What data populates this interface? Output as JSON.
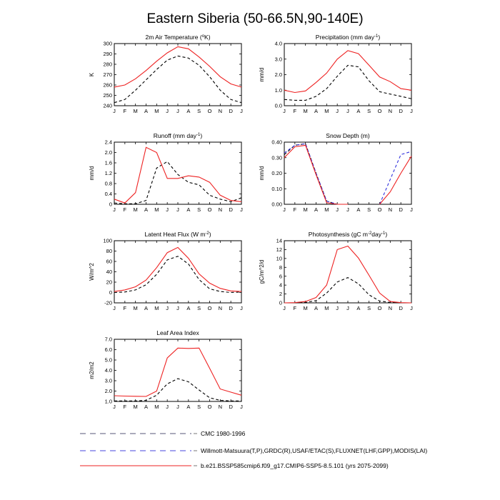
{
  "title": "Eastern Siberia (50-66.5N,90-140E)",
  "months": [
    "J",
    "F",
    "M",
    "A",
    "M",
    "J",
    "J",
    "A",
    "S",
    "O",
    "N",
    "D",
    "J"
  ],
  "legend": [
    {
      "label": "CMC 1980-1996",
      "color": "#555577",
      "dash": "8,6"
    },
    {
      "label": "Willmott-Matsuura(T,P),GRDC(R),USAF/ETAC(S),FLUXNET(LHF,GPP),MODIS(LAI)",
      "color": "#4444dd",
      "dash": "8,6"
    },
    {
      "label": "b.e21.BSSP585cmip6.f09_g17.CMIP6-SSP5-8.5.101 (yrs 2075-2099)",
      "color": "#ee2222",
      "dash": ""
    }
  ],
  "chart_data": [
    {
      "type": "line",
      "title_parts": [
        "2m Air Temperature (",
        "o",
        "K)"
      ],
      "ylabel": "K",
      "ylim": [
        240,
        300
      ],
      "yticks": [
        "240",
        "250",
        "260",
        "270",
        "280",
        "290",
        "300"
      ],
      "series": [
        {
          "style": "dashed",
          "color": "#000000",
          "values": [
            243,
            246,
            255,
            265,
            275,
            284,
            288,
            286,
            279,
            268,
            255,
            246,
            243
          ]
        },
        {
          "style": "solid",
          "color": "#ee2222",
          "values": [
            258,
            260,
            266,
            274,
            283,
            291,
            297,
            295,
            287,
            278,
            268,
            261,
            258
          ]
        }
      ]
    },
    {
      "type": "line",
      "title_parts": [
        "Precipitation (mm day",
        "-1",
        ")"
      ],
      "ylabel": "mm/d",
      "ylim": [
        0,
        4
      ],
      "yticks": [
        "0.0",
        "1.0",
        "2.0",
        "3.0",
        "4.0"
      ],
      "series": [
        {
          "style": "dashed",
          "color": "#000000",
          "values": [
            0.4,
            0.35,
            0.35,
            0.6,
            1.1,
            1.9,
            2.6,
            2.5,
            1.6,
            0.9,
            0.75,
            0.6,
            0.45
          ]
        },
        {
          "style": "solid",
          "color": "#ee2222",
          "values": [
            1.0,
            0.85,
            0.95,
            1.5,
            2.1,
            3.0,
            3.55,
            3.35,
            2.6,
            1.85,
            1.55,
            1.1,
            1.0
          ]
        }
      ]
    },
    {
      "type": "line",
      "title_parts": [
        "Runoff (mm day",
        "-1",
        ")"
      ],
      "ylabel": "mm/d",
      "ylim": [
        0,
        2.4
      ],
      "yticks": [
        "0",
        "0.4",
        "0.8",
        "1.2",
        "1.6",
        "2.0",
        "2.4"
      ],
      "series": [
        {
          "style": "dashed",
          "color": "#000000",
          "values": [
            0.05,
            0.02,
            0.02,
            0.15,
            1.4,
            1.65,
            1.15,
            0.85,
            0.75,
            0.35,
            0.2,
            0.1,
            0.25
          ]
        },
        {
          "style": "solid",
          "color": "#ee2222",
          "values": [
            0.2,
            0.05,
            0.45,
            2.2,
            2.0,
            1.0,
            1.0,
            1.1,
            1.05,
            0.85,
            0.35,
            0.15,
            0.1
          ]
        }
      ]
    },
    {
      "type": "line",
      "title_parts": [
        "Snow Depth (m)"
      ],
      "ylabel": "mm/d",
      "ylim": [
        0,
        0.4
      ],
      "yticks": [
        "0.00",
        "0.10",
        "0.20",
        "0.30",
        "0.40"
      ],
      "series": [
        {
          "style": "dashed",
          "color": "#000000",
          "values": [
            0.32,
            0.38,
            0.39,
            0.2,
            0.02,
            0.0,
            0.0,
            null,
            null,
            null,
            null,
            null,
            null
          ]
        },
        {
          "style": "dashed",
          "color": "#3333dd",
          "values": [
            0.33,
            0.38,
            0.39,
            0.2,
            0.02,
            0.0,
            0.0,
            null,
            null,
            0.0,
            0.16,
            0.32,
            0.34
          ]
        },
        {
          "style": "solid",
          "color": "#ee2222",
          "values": [
            0.3,
            0.37,
            0.38,
            0.19,
            0.01,
            0.0,
            0.0,
            null,
            null,
            0.0,
            0.08,
            0.2,
            0.31
          ]
        }
      ]
    },
    {
      "type": "line",
      "title_parts": [
        "Latent Heat Flux (W m",
        "-2",
        ")"
      ],
      "ylabel": "W/m^2",
      "ylim": [
        -20,
        100
      ],
      "yticks": [
        "-20",
        "0",
        "20",
        "40",
        "60",
        "80",
        "100"
      ],
      "series": [
        {
          "style": "dashed",
          "color": "#000000",
          "values": [
            0,
            1,
            5,
            15,
            35,
            63,
            70,
            55,
            25,
            7,
            2,
            0,
            1
          ]
        },
        {
          "style": "solid",
          "color": "#ee2222",
          "values": [
            2,
            5,
            11,
            24,
            48,
            77,
            87,
            66,
            36,
            18,
            8,
            3,
            2
          ]
        }
      ]
    },
    {
      "type": "line",
      "title_parts": [
        "Photosynthesis (gC m",
        "-2",
        "day",
        "-1",
        ")"
      ],
      "ylabel": "gC/m^2/d",
      "ylim": [
        0,
        14
      ],
      "yticks": [
        "0",
        "2",
        "4",
        "6",
        "8",
        "10",
        "12",
        "14"
      ],
      "series": [
        {
          "style": "dashed",
          "color": "#000000",
          "values": [
            0,
            0,
            0.1,
            0.5,
            2.2,
            4.7,
            5.7,
            4.3,
            1.8,
            0.4,
            0.1,
            0,
            0
          ]
        },
        {
          "style": "solid",
          "color": "#ee2222",
          "values": [
            0,
            0.05,
            0.3,
            1.2,
            4.0,
            12.0,
            12.8,
            10.1,
            6.2,
            2.2,
            0.3,
            0.05,
            0
          ]
        }
      ]
    },
    {
      "type": "line",
      "title_parts": [
        "Leaf Area Index"
      ],
      "ylabel": "m2/m2",
      "ylim": [
        1,
        7
      ],
      "yticks": [
        "1.0",
        "2.0",
        "3.0",
        "4.0",
        "5.0",
        "6.0",
        "7.0"
      ],
      "series": [
        {
          "style": "dashed",
          "color": "#000000",
          "values": [
            1.05,
            1.05,
            1.05,
            1.1,
            1.6,
            2.7,
            3.2,
            2.9,
            2.1,
            1.35,
            1.1,
            1.05,
            1.05
          ]
        },
        {
          "style": "solid",
          "color": "#ee2222",
          "values": [
            1.55,
            1.52,
            1.5,
            1.48,
            2.0,
            5.2,
            6.15,
            6.12,
            6.15,
            4.2,
            2.2,
            1.9,
            1.6
          ]
        }
      ]
    }
  ]
}
